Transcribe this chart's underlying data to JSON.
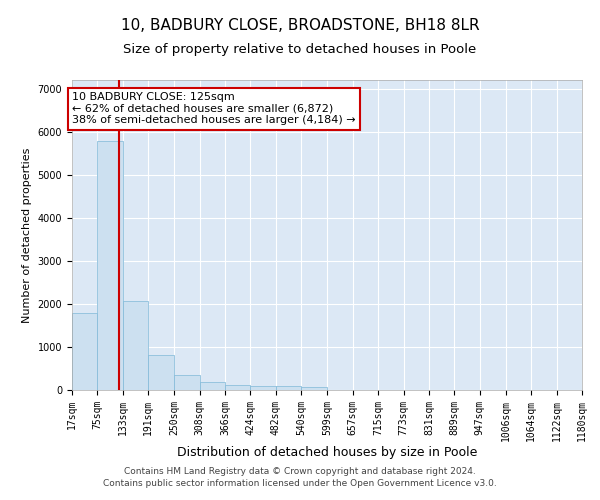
{
  "title": "10, BADBURY CLOSE, BROADSTONE, BH18 8LR",
  "subtitle": "Size of property relative to detached houses in Poole",
  "xlabel": "Distribution of detached houses by size in Poole",
  "ylabel": "Number of detached properties",
  "bin_edges": [
    17,
    75,
    133,
    191,
    250,
    308,
    366,
    424,
    482,
    540,
    599,
    657,
    715,
    773,
    831,
    889,
    947,
    1006,
    1064,
    1122,
    1180
  ],
  "bar_heights": [
    1780,
    5780,
    2060,
    820,
    340,
    185,
    120,
    100,
    95,
    80,
    0,
    0,
    0,
    0,
    0,
    0,
    0,
    0,
    0,
    0
  ],
  "bar_color": "#cce0f0",
  "bar_edge_color": "#7fb8d8",
  "property_size": 125,
  "vline_color": "#cc0000",
  "annotation_line1": "10 BADBURY CLOSE: 125sqm",
  "annotation_line2": "← 62% of detached houses are smaller (6,872)",
  "annotation_line3": "38% of semi-detached houses are larger (4,184) →",
  "annotation_box_color": "#ffffff",
  "annotation_border_color": "#cc0000",
  "ylim": [
    0,
    7200
  ],
  "yticks": [
    0,
    1000,
    2000,
    3000,
    4000,
    5000,
    6000,
    7000
  ],
  "footnote_line1": "Contains HM Land Registry data © Crown copyright and database right 2024.",
  "footnote_line2": "Contains public sector information licensed under the Open Government Licence v3.0.",
  "fig_background_color": "#ffffff",
  "plot_background_color": "#dce8f5",
  "grid_color": "#ffffff",
  "title_fontsize": 11,
  "subtitle_fontsize": 9.5,
  "ylabel_fontsize": 8,
  "xlabel_fontsize": 9,
  "tick_fontsize": 7,
  "annotation_fontsize": 8,
  "footnote_fontsize": 6.5
}
